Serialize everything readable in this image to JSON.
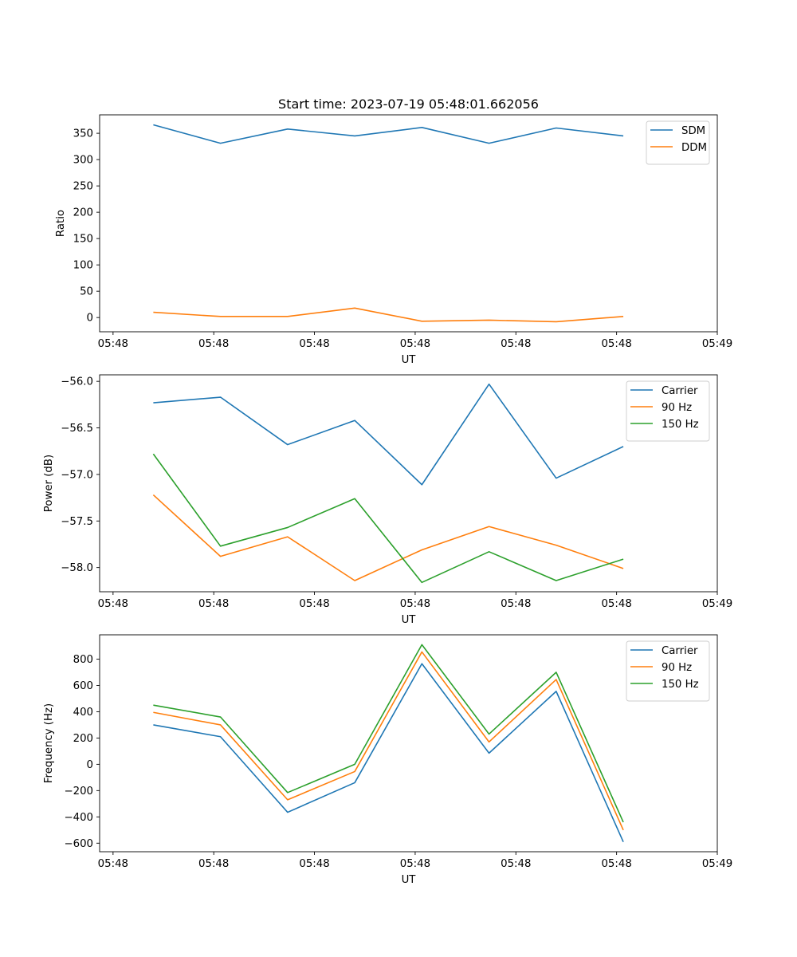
{
  "chart_data": [
    {
      "type": "line",
      "title": "Start time: 2023-07-19 05:48:01.662056",
      "xlabel": "UT",
      "ylabel": "Ratio",
      "x": [
        1,
        2,
        3,
        4,
        5,
        6,
        7,
        8
      ],
      "xlim": [
        0.2,
        9.4
      ],
      "xticks": [
        0.4,
        1.9,
        3.4,
        4.9,
        6.4,
        7.9,
        9.4
      ],
      "xtick_labels": [
        "05:48",
        "05:48",
        "05:48",
        "05:48",
        "05:48",
        "05:48",
        "05:49"
      ],
      "ylim": [
        -27,
        385
      ],
      "yticks": [
        0,
        50,
        100,
        150,
        200,
        250,
        300,
        350
      ],
      "ytick_labels": [
        "0",
        "50",
        "100",
        "150",
        "200",
        "250",
        "300",
        "350"
      ],
      "legend": "top-right",
      "series": [
        {
          "name": "SDM",
          "color": "#1f77b4",
          "values": [
            366,
            331,
            358,
            345,
            361,
            331,
            360,
            345
          ]
        },
        {
          "name": "DDM",
          "color": "#ff7f0e",
          "values": [
            10,
            2,
            2,
            18,
            -7,
            -5,
            -8,
            2
          ]
        }
      ]
    },
    {
      "type": "line",
      "title": "",
      "xlabel": "UT",
      "ylabel": "Power (dB)",
      "x": [
        1,
        2,
        3,
        4,
        5,
        6,
        7,
        8
      ],
      "xlim": [
        0.2,
        9.4
      ],
      "xticks": [
        0.4,
        1.9,
        3.4,
        4.9,
        6.4,
        7.9,
        9.4
      ],
      "xtick_labels": [
        "05:48",
        "05:48",
        "05:48",
        "05:48",
        "05:48",
        "05:48",
        "05:49"
      ],
      "ylim": [
        -58.26,
        -55.93
      ],
      "yticks": [
        -58.0,
        -57.5,
        -57.0,
        -56.5,
        -56.0
      ],
      "ytick_labels": [
        "−58.0",
        "−57.5",
        "−57.0",
        "−56.5",
        "−56.0"
      ],
      "legend": "top-right",
      "series": [
        {
          "name": "Carrier",
          "color": "#1f77b4",
          "values": [
            -56.23,
            -56.17,
            -56.68,
            -56.42,
            -57.11,
            -56.03,
            -57.04,
            -56.7
          ]
        },
        {
          "name": "90 Hz",
          "color": "#ff7f0e",
          "values": [
            -57.22,
            -57.88,
            -57.67,
            -58.14,
            -57.81,
            -57.56,
            -57.76,
            -58.01
          ]
        },
        {
          "name": "150 Hz",
          "color": "#2ca02c",
          "values": [
            -56.78,
            -57.77,
            -57.57,
            -57.26,
            -58.16,
            -57.83,
            -58.14,
            -57.91
          ]
        }
      ]
    },
    {
      "type": "line",
      "title": "",
      "xlabel": "UT",
      "ylabel": "Frequency (Hz)",
      "x": [
        1,
        2,
        3,
        4,
        5,
        6,
        7,
        8
      ],
      "xlim": [
        0.2,
        9.4
      ],
      "xticks": [
        0.4,
        1.9,
        3.4,
        4.9,
        6.4,
        7.9,
        9.4
      ],
      "xtick_labels": [
        "05:48",
        "05:48",
        "05:48",
        "05:48",
        "05:48",
        "05:48",
        "05:49"
      ],
      "ylim": [
        -665,
        985
      ],
      "yticks": [
        -600,
        -400,
        -200,
        0,
        200,
        400,
        600,
        800
      ],
      "ytick_labels": [
        "−600",
        "−400",
        "−200",
        "0",
        "200",
        "400",
        "600",
        "800"
      ],
      "legend": "top-right",
      "series": [
        {
          "name": "Carrier",
          "color": "#1f77b4",
          "values": [
            300,
            210,
            -365,
            -140,
            765,
            85,
            555,
            -590
          ]
        },
        {
          "name": "90 Hz",
          "color": "#ff7f0e",
          "values": [
            395,
            300,
            -270,
            -55,
            855,
            170,
            645,
            -500
          ]
        },
        {
          "name": "150 Hz",
          "color": "#2ca02c",
          "values": [
            450,
            360,
            -215,
            0,
            910,
            230,
            700,
            -440
          ]
        }
      ]
    }
  ]
}
